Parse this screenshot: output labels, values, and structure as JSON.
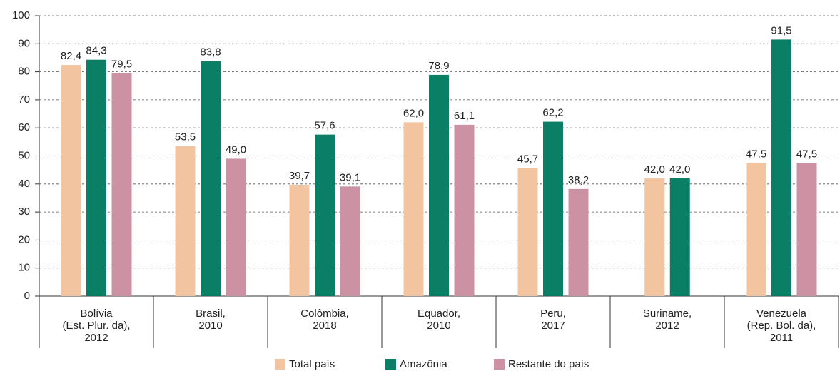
{
  "chart_data": {
    "type": "bar",
    "categories": [
      [
        "Bolívia",
        "(Est. Plur. da),",
        "2012"
      ],
      [
        "Brasil,",
        "2010"
      ],
      [
        "Colômbia,",
        "2018"
      ],
      [
        "Equador,",
        "2010"
      ],
      [
        "Peru,",
        "2017"
      ],
      [
        "Suriname,",
        "2012"
      ],
      [
        "Venezuela",
        "(Rep. Bol. da),",
        "2011"
      ]
    ],
    "series": [
      {
        "name": "Total país",
        "color": "#f2c4a0",
        "values": [
          82.4,
          53.5,
          39.7,
          62.0,
          45.7,
          42.0,
          47.5
        ],
        "value_labels": [
          "82,4",
          "53,5",
          "39,7",
          "62,0",
          "45,7",
          "42,0",
          "47,5"
        ]
      },
      {
        "name": "Amazônia",
        "color": "#0a7f66",
        "values": [
          84.3,
          83.8,
          57.6,
          78.9,
          62.2,
          42.0,
          91.5
        ],
        "value_labels": [
          "84,3",
          "83,8",
          "57,6",
          "78,9",
          "62,2",
          "42,0",
          "91,5"
        ]
      },
      {
        "name": "Restante do país",
        "color": "#cc92a4",
        "values": [
          79.5,
          49.0,
          39.1,
          61.1,
          38.2,
          null,
          47.5
        ],
        "value_labels": [
          "79,5",
          "49,0",
          "39,1",
          "61,1",
          "38,2",
          null,
          "47,5"
        ]
      }
    ],
    "ylim": [
      0,
      100
    ],
    "yticks": [
      0,
      10,
      20,
      30,
      40,
      50,
      60,
      70,
      80,
      90,
      100
    ],
    "grid": true,
    "legend": "bottom"
  }
}
